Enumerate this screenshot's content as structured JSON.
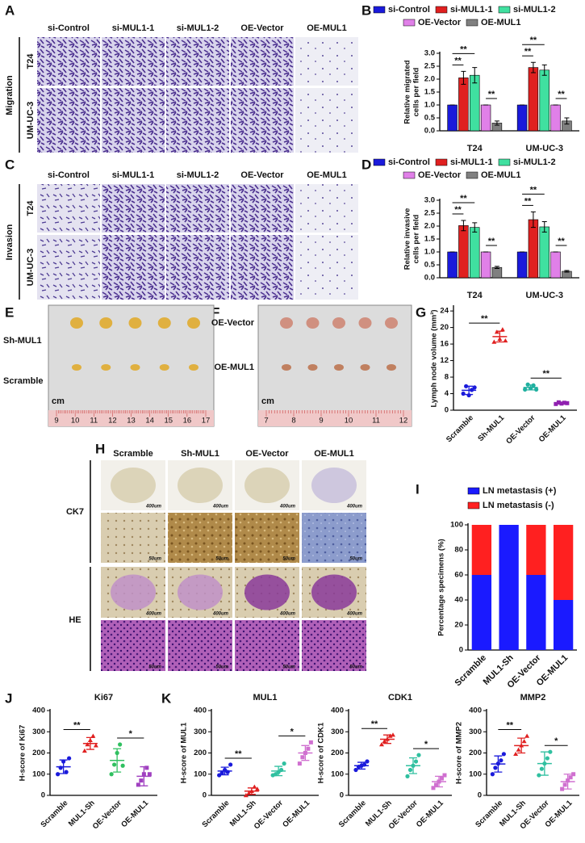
{
  "panel_labels": [
    "A",
    "B",
    "C",
    "D",
    "E",
    "F",
    "G",
    "H",
    "I",
    "J",
    "K"
  ],
  "figure_a": {
    "group_label": "Migration",
    "columns": [
      "si-Control",
      "si-MUL1-1",
      "si-MUL1-2",
      "OE-Vector",
      "OE-MUL1"
    ],
    "rows": [
      "T24",
      "UM-UC-3"
    ]
  },
  "figure_c": {
    "group_label": "Invasion",
    "columns": [
      "si-Control",
      "si-MUL1-1",
      "si-MUL1-2",
      "OE-Vector",
      "OE-MUL1"
    ],
    "rows": [
      "T24",
      "UM-UC-3"
    ]
  },
  "figure_e": {
    "rows": [
      "Sh-MUL1",
      "Scramble"
    ],
    "unit": "cm",
    "ruler": [
      9,
      10,
      11,
      12,
      13,
      14,
      15,
      16,
      17
    ]
  },
  "figure_f": {
    "rows": [
      "OE-Vector",
      "OE-MUL1"
    ],
    "unit": "cm",
    "ruler": [
      7,
      8,
      9,
      10,
      11,
      12
    ]
  },
  "figure_h": {
    "columns": [
      "Scramble",
      "Sh-MUL1",
      "OE-Vector",
      "OE-MUL1"
    ],
    "rows": [
      "CK7",
      "HE"
    ],
    "scale_labels": [
      "400um",
      "50um"
    ]
  },
  "chart_data": [
    {
      "type": "bar",
      "y_label": [
        "Relative migrated",
        "cells per field"
      ],
      "categories": [
        "T24",
        "UM-UC-3"
      ],
      "series": [
        {
          "name": "si-Control",
          "color": "#1a1adb",
          "values": [
            1,
            1
          ],
          "errors": [
            0,
            0
          ]
        },
        {
          "name": "si-MUL1-1",
          "color": "#e02020",
          "values": [
            2.05,
            2.45
          ],
          "errors": [
            0.25,
            0.2
          ]
        },
        {
          "name": "si-MUL1-2",
          "color": "#40e0a0",
          "values": [
            2.15,
            2.35
          ],
          "errors": [
            0.3,
            0.2
          ]
        },
        {
          "name": "OE-Vector",
          "color": "#e080e8",
          "values": [
            1,
            1
          ],
          "errors": [
            0,
            0
          ]
        },
        {
          "name": "OE-MUL1",
          "color": "#808080",
          "values": [
            0.3,
            0.38
          ],
          "errors": [
            0.08,
            0.12
          ]
        }
      ],
      "ylim": [
        0,
        3
      ],
      "yticks": [
        {
          "value": 0,
          "label": "0.0"
        },
        0.5,
        {
          "value": 1,
          "label": "1.0"
        },
        1.5,
        {
          "value": 2,
          "label": "2.0"
        },
        2.5,
        {
          "value": 3,
          "label": "3.0"
        }
      ],
      "annotations": [
        "**",
        "**",
        "**",
        "**",
        "**",
        "**"
      ]
    },
    {
      "type": "bar",
      "y_label": [
        "Relative invasive",
        "cells per field"
      ],
      "categories": [
        "T24",
        "UM-UC-3"
      ],
      "series": [
        {
          "name": "si-Control",
          "color": "#1a1adb",
          "values": [
            1,
            1
          ],
          "errors": [
            0,
            0
          ]
        },
        {
          "name": "si-MUL1-1",
          "color": "#e02020",
          "values": [
            2.02,
            2.25
          ],
          "errors": [
            0.2,
            0.3
          ]
        },
        {
          "name": "si-MUL1-2",
          "color": "#40e0a0",
          "values": [
            1.95,
            1.97
          ],
          "errors": [
            0.18,
            0.2
          ]
        },
        {
          "name": "OE-Vector",
          "color": "#e080e8",
          "values": [
            1,
            1
          ],
          "errors": [
            0,
            0
          ]
        },
        {
          "name": "OE-MUL1",
          "color": "#808080",
          "values": [
            0.4,
            0.25
          ],
          "errors": [
            0.04,
            0.03
          ]
        }
      ],
      "ylim": [
        0,
        3
      ],
      "yticks": [
        {
          "value": 0,
          "label": "0.0"
        },
        0.5,
        {
          "value": 1,
          "label": "1.0"
        },
        1.5,
        {
          "value": 2,
          "label": "2.0"
        },
        2.5,
        {
          "value": 3,
          "label": "3.0"
        }
      ],
      "annotations": [
        "**",
        "**",
        "**",
        "**",
        "**",
        "**"
      ]
    },
    {
      "type": "dot",
      "y_label": "Lymph node volume (mm³)",
      "categories": [
        "Scramble",
        "Sh-MUL1",
        "OE-Vector",
        "OE-MUL1"
      ],
      "colors": [
        "#1a1adb",
        "#e02020",
        "#20b0a0",
        "#9020b0"
      ],
      "values": [
        4.8,
        17.8,
        5.5,
        1.7
      ],
      "errors": [
        1.0,
        1.3,
        0.6,
        0.2
      ],
      "points": [
        [
          4.0,
          5.8,
          3.6,
          4.9,
          5.5
        ],
        [
          16.5,
          18.9,
          17.2,
          19.5,
          16.8
        ],
        [
          5.0,
          6.2,
          5.3,
          6.0,
          5.0
        ],
        [
          1.5,
          1.9,
          1.6,
          1.8,
          1.7
        ]
      ],
      "ylim": [
        0,
        25
      ],
      "yticks": [
        0,
        4,
        8,
        12,
        16,
        20,
        24
      ],
      "annotations": [
        "**",
        "**"
      ]
    },
    {
      "type": "stacked_bar",
      "y_label": "Percentage specimens (%)",
      "categories": [
        "Scramble",
        "MUL1-Sh",
        "OE-Vector",
        "OE-MUL1"
      ],
      "series": [
        {
          "name": "LN metastasis (+)",
          "color": "#1a1aff",
          "values": [
            60,
            100,
            60,
            40
          ]
        },
        {
          "name": "LN metastasis (-)",
          "color": "#ff2020",
          "values": [
            40,
            0,
            40,
            60
          ]
        }
      ],
      "ylim": [
        0,
        100
      ],
      "yticks": [
        0,
        20,
        40,
        60,
        80,
        100
      ]
    },
    {
      "type": "dot",
      "title": "Ki67",
      "y_label": "H-score of Ki67",
      "categories": [
        "Scramble",
        "MUL1-Sh",
        "OE-Vector",
        "OE-MUL1"
      ],
      "colors": [
        "#1a1adb",
        "#e02020",
        "#30c060",
        "#a040c0"
      ],
      "values": [
        135,
        245,
        165,
        90
      ],
      "errors": [
        32,
        28,
        55,
        45
      ],
      "points": [
        [
          100,
          130,
          160,
          110,
          175
        ],
        [
          210,
          240,
          260,
          280,
          235
        ],
        [
          100,
          145,
          200,
          240,
          140
        ],
        [
          50,
          70,
          100,
          130,
          100
        ]
      ],
      "ylim": [
        0,
        400
      ],
      "yticks": [
        0,
        100,
        200,
        300,
        400
      ],
      "annotations": [
        "**",
        "*"
      ]
    },
    {
      "type": "dot",
      "title": "MUL1",
      "y_label": "H-score of MUL1",
      "categories": [
        "Scramble",
        "MUL1-Sh",
        "OE-Vector",
        "OE-MUL1"
      ],
      "colors": [
        "#1a1adb",
        "#e02020",
        "#30c0a0",
        "#d070d0"
      ],
      "values": [
        115,
        20,
        115,
        200
      ],
      "errors": [
        18,
        15,
        22,
        35
      ],
      "points": [
        [
          95,
          105,
          120,
          110,
          145
        ],
        [
          0,
          10,
          20,
          40,
          30
        ],
        [
          95,
          100,
          110,
          120,
          150
        ],
        [
          150,
          180,
          200,
          220,
          250
        ]
      ],
      "ylim": [
        0,
        400
      ],
      "yticks": [
        0,
        100,
        200,
        300,
        400
      ],
      "annotations": [
        "**",
        "*"
      ]
    },
    {
      "type": "dot",
      "title": "CDK1",
      "y_label": "H-score of CDK1",
      "categories": [
        "Scramble",
        "MUL1-Sh",
        "OE-Vector",
        "OE-MUL1"
      ],
      "colors": [
        "#1a1adb",
        "#e02020",
        "#30c0a0",
        "#d070d0"
      ],
      "values": [
        140,
        265,
        140,
        65
      ],
      "errors": [
        16,
        20,
        37,
        25
      ],
      "points": [
        [
          120,
          135,
          140,
          145,
          160
        ],
        [
          240,
          255,
          265,
          280,
          285
        ],
        [
          90,
          120,
          140,
          160,
          190
        ],
        [
          35,
          50,
          65,
          80,
          95
        ]
      ],
      "ylim": [
        0,
        400
      ],
      "yticks": [
        0,
        100,
        200,
        300,
        400
      ],
      "annotations": [
        "**",
        "*"
      ]
    },
    {
      "type": "dot",
      "title": "MMP2",
      "y_label": "H-score of MMP2",
      "categories": [
        "Scramble",
        "MUL1-Sh",
        "OE-Vector",
        "OE-MUL1"
      ],
      "colors": [
        "#1a1adb",
        "#e02020",
        "#30c0a0",
        "#d070d0"
      ],
      "values": [
        148,
        235,
        150,
        65
      ],
      "errors": [
        38,
        35,
        55,
        35
      ],
      "points": [
        [
          100,
          130,
          150,
          165,
          195
        ],
        [
          195,
          215,
          235,
          255,
          280
        ],
        [
          95,
          125,
          150,
          175,
          205
        ],
        [
          30,
          50,
          70,
          85,
          100
        ]
      ],
      "ylim": [
        0,
        400
      ],
      "yticks": [
        0,
        100,
        200,
        300,
        400
      ],
      "annotations": [
        "**",
        "*"
      ]
    }
  ]
}
